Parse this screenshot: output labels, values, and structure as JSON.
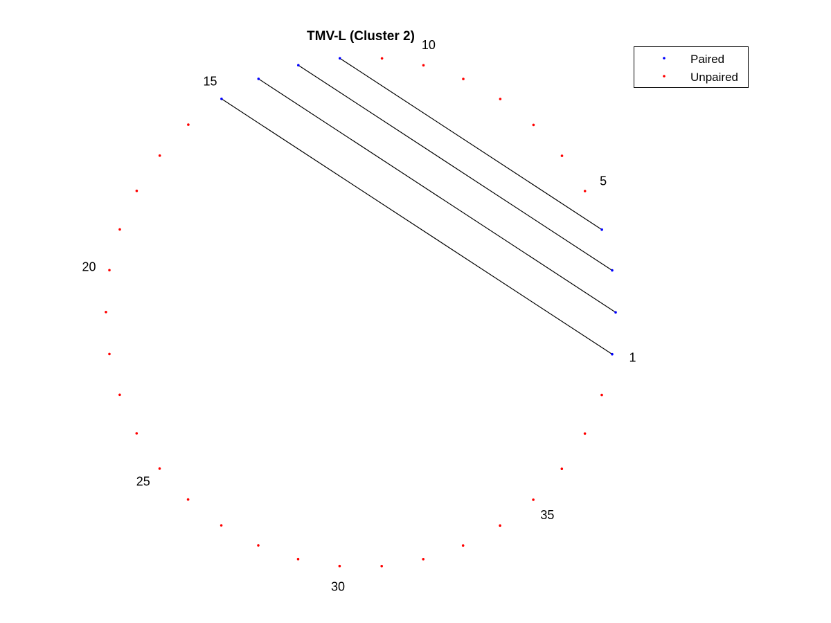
{
  "chart_data": {
    "type": "arc-diagram",
    "layout": "circular",
    "title": "TMV-L (Cluster 2)",
    "n_nodes": 38,
    "node_labels": [
      {
        "index": 1,
        "text": "1"
      },
      {
        "index": 5,
        "text": "5"
      },
      {
        "index": 10,
        "text": "10"
      },
      {
        "index": 15,
        "text": "15"
      },
      {
        "index": 20,
        "text": "20"
      },
      {
        "index": 25,
        "text": "25"
      },
      {
        "index": 30,
        "text": "30"
      },
      {
        "index": 35,
        "text": "35"
      }
    ],
    "paired_nodes": [
      1,
      2,
      3,
      4,
      12,
      13,
      14,
      15
    ],
    "pairs": [
      [
        1,
        15
      ],
      [
        2,
        14
      ],
      [
        3,
        13
      ],
      [
        4,
        12
      ]
    ],
    "legend": {
      "placement": "top-right",
      "entries": [
        {
          "label": "Paired",
          "color": "#0000ff"
        },
        {
          "label": "Unpaired",
          "color": "#ff0000"
        }
      ]
    },
    "colors": {
      "paired": "#0000ff",
      "unpaired": "#ff0000",
      "pair_line": "#000000"
    }
  }
}
